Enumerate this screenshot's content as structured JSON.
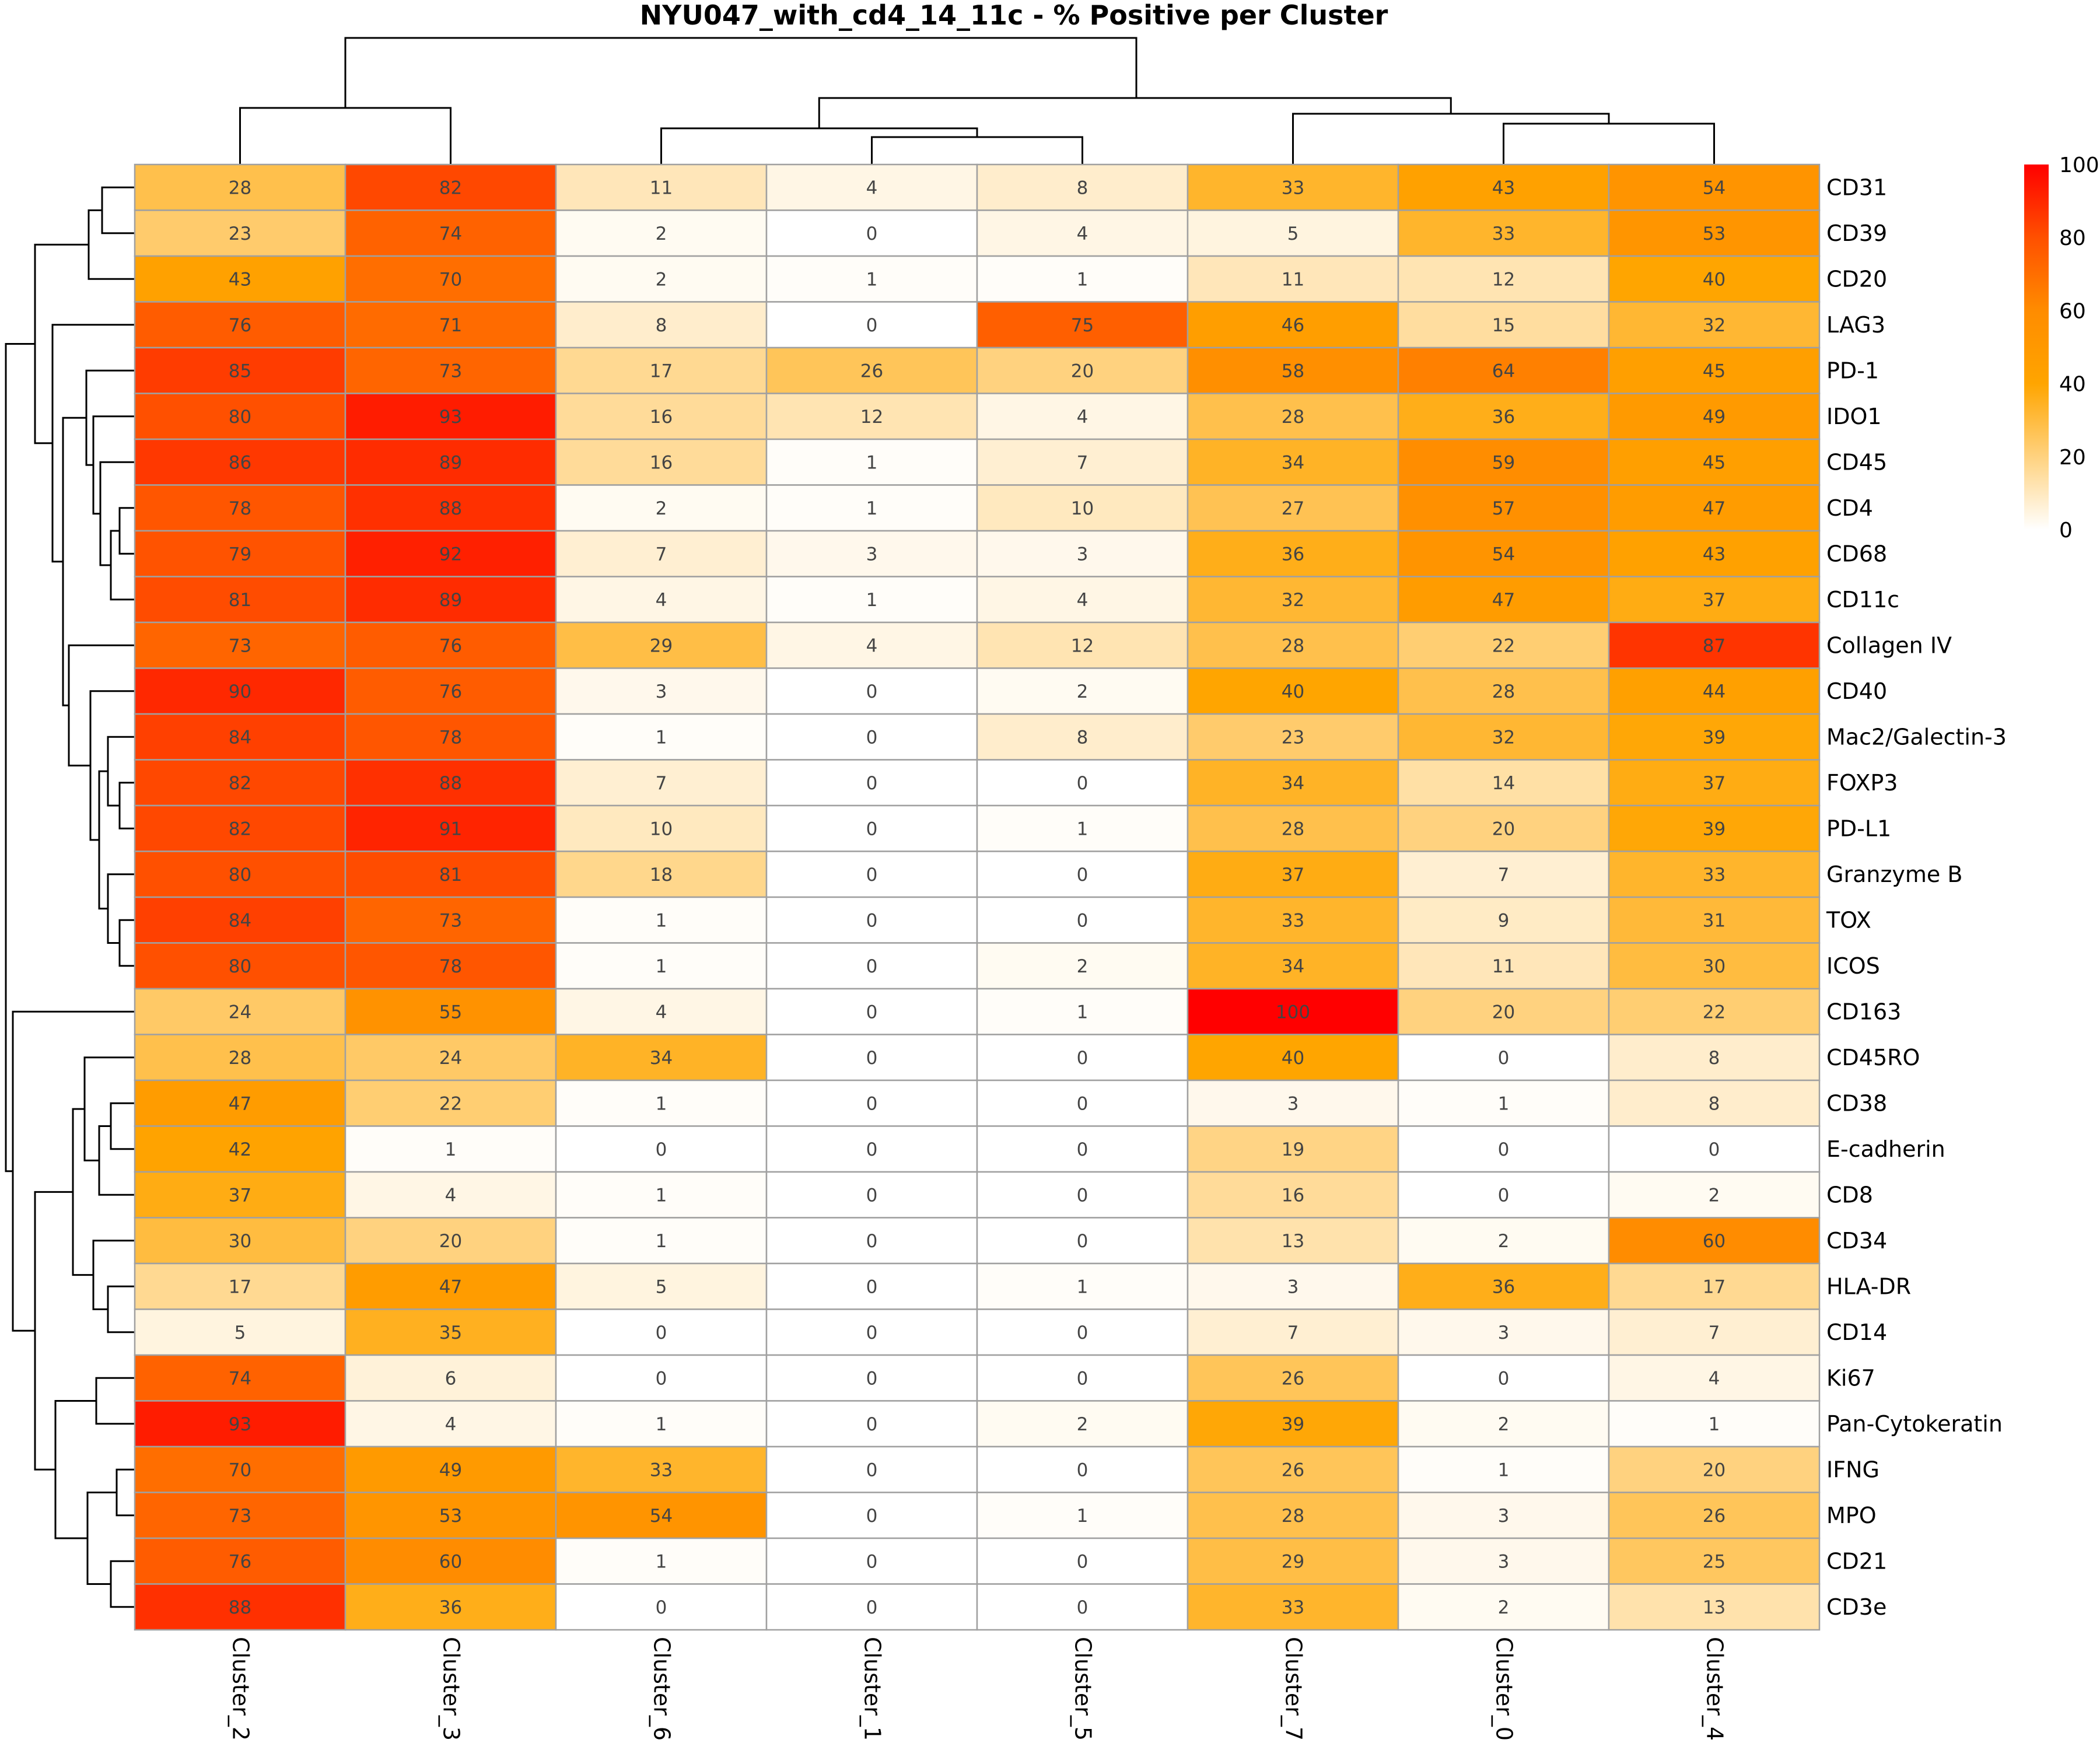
{
  "chart_data": {
    "type": "heatmap",
    "title": "NYU047_with_cd4_14_11c - % Positive per Cluster",
    "columns": [
      "Cluster_2",
      "Cluster_3",
      "Cluster_6",
      "Cluster_1",
      "Cluster_5",
      "Cluster_7",
      "Cluster_0",
      "Cluster_4"
    ],
    "rows": [
      "CD31",
      "CD39",
      "CD20",
      "LAG3",
      "PD-1",
      "IDO1",
      "CD45",
      "CD4",
      "CD68",
      "CD11c",
      "Collagen IV",
      "CD40",
      "Mac2/Galectin-3",
      "FOXP3",
      "PD-L1",
      "Granzyme B",
      "TOX",
      "ICOS",
      "CD163",
      "CD45RO",
      "CD38",
      "E-cadherin",
      "CD8",
      "CD34",
      "HLA-DR",
      "CD14",
      "Ki67",
      "Pan-Cytokeratin",
      "IFNG",
      "MPO",
      "CD21",
      "CD3e"
    ],
    "values": [
      [
        28,
        82,
        11,
        4,
        8,
        33,
        43,
        54
      ],
      [
        23,
        74,
        2,
        0,
        4,
        5,
        33,
        53
      ],
      [
        43,
        70,
        2,
        1,
        1,
        11,
        12,
        40
      ],
      [
        76,
        71,
        8,
        0,
        75,
        46,
        15,
        32
      ],
      [
        85,
        73,
        17,
        26,
        20,
        58,
        64,
        45
      ],
      [
        80,
        93,
        16,
        12,
        4,
        28,
        36,
        49
      ],
      [
        86,
        89,
        16,
        1,
        7,
        34,
        59,
        45
      ],
      [
        78,
        88,
        2,
        1,
        10,
        27,
        57,
        47
      ],
      [
        79,
        92,
        7,
        3,
        3,
        36,
        54,
        43
      ],
      [
        81,
        89,
        4,
        1,
        4,
        32,
        47,
        37
      ],
      [
        73,
        76,
        29,
        4,
        12,
        28,
        22,
        87
      ],
      [
        90,
        76,
        3,
        0,
        2,
        40,
        28,
        44
      ],
      [
        84,
        78,
        1,
        0,
        8,
        23,
        32,
        39
      ],
      [
        82,
        88,
        7,
        0,
        0,
        34,
        14,
        37
      ],
      [
        82,
        91,
        10,
        0,
        1,
        28,
        20,
        39
      ],
      [
        80,
        81,
        18,
        0,
        0,
        37,
        7,
        33
      ],
      [
        84,
        73,
        1,
        0,
        0,
        33,
        9,
        31
      ],
      [
        80,
        78,
        1,
        0,
        2,
        34,
        11,
        30
      ],
      [
        24,
        55,
        4,
        0,
        1,
        100,
        20,
        22
      ],
      [
        28,
        24,
        34,
        0,
        0,
        40,
        0,
        8
      ],
      [
        47,
        22,
        1,
        0,
        0,
        3,
        1,
        8
      ],
      [
        42,
        1,
        0,
        0,
        0,
        19,
        0,
        0
      ],
      [
        37,
        4,
        1,
        0,
        0,
        16,
        0,
        2
      ],
      [
        30,
        20,
        1,
        0,
        0,
        13,
        2,
        60
      ],
      [
        17,
        47,
        5,
        0,
        1,
        3,
        36,
        17
      ],
      [
        5,
        35,
        0,
        0,
        0,
        7,
        3,
        7
      ],
      [
        74,
        6,
        0,
        0,
        0,
        26,
        0,
        4
      ],
      [
        93,
        4,
        1,
        0,
        2,
        39,
        2,
        1
      ],
      [
        70,
        49,
        33,
        0,
        0,
        26,
        1,
        20
      ],
      [
        73,
        53,
        54,
        0,
        1,
        28,
        3,
        26
      ],
      [
        76,
        60,
        1,
        0,
        0,
        29,
        3,
        25
      ],
      [
        88,
        36,
        0,
        0,
        0,
        33,
        2,
        13
      ]
    ],
    "color_scale": {
      "min": 0,
      "max": 100,
      "ticks": [
        0,
        20,
        40,
        60,
        80,
        100
      ],
      "stops": [
        "#ffffff",
        "#ffd27f",
        "#ffa500",
        "#ff7300",
        "#ff0000"
      ]
    },
    "cell_border_color": "#a0a0a0",
    "legend_position": "right",
    "dendrograms": {
      "rows": true,
      "columns": true
    }
  }
}
